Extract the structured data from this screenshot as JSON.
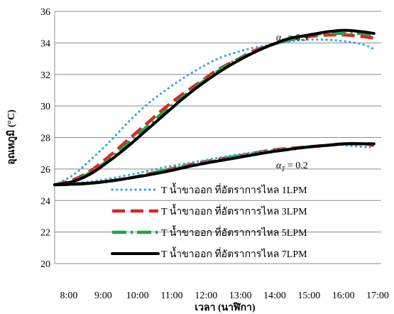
{
  "chart_data": {
    "type": "line",
    "title": "",
    "xlabel": "เวลา (นาฬิกา)",
    "ylabel": "อุณหภูมิ (°C)",
    "x_ticks": [
      "8:00",
      "9:00",
      "10:00",
      "11:00",
      "12:00",
      "13:00",
      "14:00",
      "15:00",
      "16:00",
      "17:00"
    ],
    "xlim": [
      8,
      17
    ],
    "ylim": [
      20,
      36
    ],
    "y_ticks": [
      20,
      22,
      24,
      26,
      28,
      30,
      32,
      34,
      36
    ],
    "grid": "horizontal",
    "legend_placement": "bottom-center",
    "annotations": [
      {
        "symbol": "α",
        "subscript": "T",
        "text": " = 0.9"
      },
      {
        "symbol": "α",
        "subscript": "T",
        "text": " = 0.2"
      }
    ],
    "series": [
      {
        "name": "T น้ำขาออก ที่อัตราการไหล 1LPM",
        "group": "0.9",
        "color": "#29a9e1",
        "style": "dotted",
        "x": [
          8.0,
          8.5,
          9.0,
          9.5,
          10.0,
          10.5,
          11.0,
          11.5,
          12.0,
          12.5,
          13.0,
          13.5,
          14.0,
          14.5,
          15.0,
          15.5,
          16.0,
          16.5,
          16.8
        ],
        "y": [
          25.0,
          25.6,
          26.6,
          27.7,
          28.9,
          30.0,
          30.9,
          31.7,
          32.4,
          33.0,
          33.4,
          33.7,
          33.9,
          34.1,
          34.2,
          34.2,
          34.1,
          33.9,
          33.6
        ]
      },
      {
        "name": "T น้ำขาออก ที่อัตราการไหล 3LPM",
        "group": "0.9",
        "color": "#e8201c",
        "style": "dashed",
        "x": [
          8.0,
          8.5,
          9.0,
          9.5,
          10.0,
          10.5,
          11.0,
          11.5,
          12.0,
          12.5,
          13.0,
          13.5,
          14.0,
          14.5,
          15.0,
          15.5,
          16.0,
          16.5,
          16.8
        ],
        "y": [
          25.0,
          25.3,
          25.9,
          26.8,
          27.8,
          28.8,
          29.8,
          30.7,
          31.5,
          32.3,
          32.9,
          33.5,
          33.9,
          34.2,
          34.4,
          34.5,
          34.5,
          34.4,
          34.3
        ]
      },
      {
        "name": "T น้ำขาออก ที่อัตราการไหล 5LPM",
        "group": "0.9",
        "color": "#22a04b",
        "style": "dash-dot",
        "x": [
          8.0,
          8.5,
          9.0,
          9.5,
          10.0,
          10.5,
          11.0,
          11.5,
          12.0,
          12.5,
          13.0,
          13.5,
          14.0,
          14.5,
          15.0,
          15.5,
          16.0,
          16.5,
          16.8
        ],
        "y": [
          25.0,
          25.2,
          25.8,
          26.6,
          27.6,
          28.6,
          29.6,
          30.5,
          31.4,
          32.2,
          32.9,
          33.4,
          33.9,
          34.2,
          34.5,
          34.6,
          34.6,
          34.6,
          34.5
        ]
      },
      {
        "name": "T น้ำขาออก ที่อัตราการไหล 7LPM",
        "group": "0.9",
        "color": "#000000",
        "style": "solid",
        "x": [
          8.0,
          8.5,
          9.0,
          9.5,
          10.0,
          10.5,
          11.0,
          11.5,
          12.0,
          12.5,
          13.0,
          13.5,
          14.0,
          14.5,
          15.0,
          15.5,
          16.0,
          16.5,
          16.8
        ],
        "y": [
          25.0,
          25.2,
          25.7,
          26.5,
          27.4,
          28.4,
          29.4,
          30.4,
          31.3,
          32.1,
          32.8,
          33.4,
          33.9,
          34.3,
          34.5,
          34.7,
          34.8,
          34.7,
          34.6
        ]
      },
      {
        "group": "0.2",
        "color": "#29a9e1",
        "style": "dotted",
        "x": [
          8.0,
          9.0,
          10.0,
          11.0,
          12.0,
          13.0,
          14.0,
          15.0,
          15.5,
          16.0,
          16.5,
          16.8
        ],
        "y": [
          25.0,
          25.2,
          25.6,
          26.1,
          26.5,
          26.9,
          27.2,
          27.4,
          27.5,
          27.5,
          27.4,
          27.4
        ]
      },
      {
        "group": "0.2",
        "color": "#e8201c",
        "style": "dashed",
        "x": [
          8.0,
          9.0,
          10.0,
          11.0,
          12.0,
          13.0,
          14.0,
          15.0,
          15.5,
          16.0,
          16.5,
          16.8
        ],
        "y": [
          25.0,
          25.1,
          25.4,
          25.9,
          26.4,
          26.8,
          27.2,
          27.4,
          27.5,
          27.6,
          27.6,
          27.5
        ]
      },
      {
        "group": "0.2",
        "color": "#22a04b",
        "style": "dash-dot",
        "x": [
          8.0,
          9.0,
          10.0,
          11.0,
          12.0,
          13.0,
          14.0,
          15.0,
          15.5,
          16.0,
          16.5,
          16.8
        ],
        "y": [
          25.0,
          25.1,
          25.4,
          25.9,
          26.3,
          26.8,
          27.1,
          27.4,
          27.5,
          27.6,
          27.6,
          27.6
        ]
      },
      {
        "group": "0.2",
        "color": "#000000",
        "style": "solid",
        "x": [
          8.0,
          9.0,
          10.0,
          11.0,
          12.0,
          13.0,
          14.0,
          15.0,
          15.5,
          16.0,
          16.5,
          16.8
        ],
        "y": [
          25.0,
          25.1,
          25.4,
          25.8,
          26.3,
          26.7,
          27.1,
          27.4,
          27.5,
          27.6,
          27.6,
          27.6
        ]
      }
    ]
  }
}
